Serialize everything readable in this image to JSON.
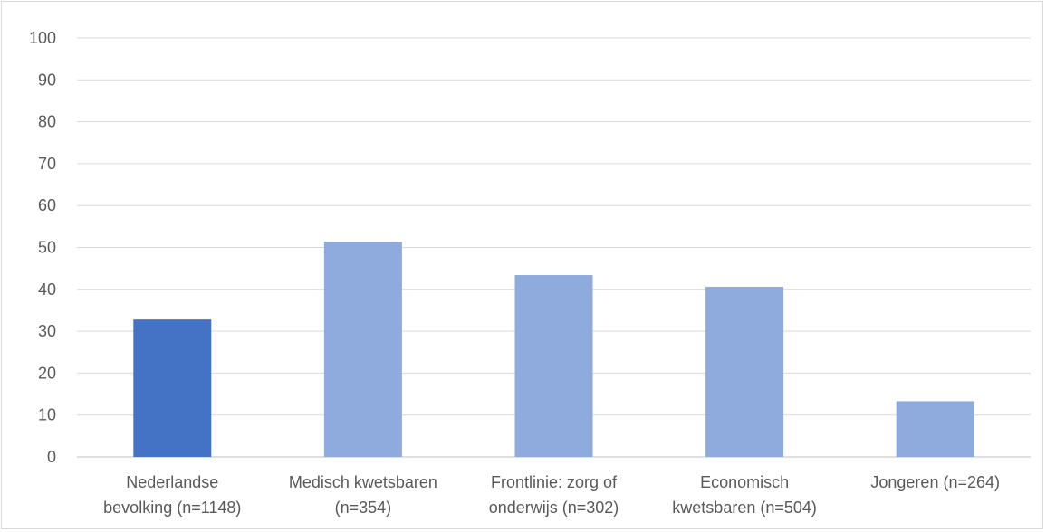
{
  "chart_data": {
    "type": "bar",
    "categories": [
      [
        "Nederlandse",
        "bevolking (n=1148)"
      ],
      [
        "Medisch kwetsbaren",
        "(n=354)"
      ],
      [
        "Frontlinie: zorg of",
        "onderwijs (n=302)"
      ],
      [
        "Economisch",
        "kwetsbaren (n=504)"
      ],
      [
        "Jongeren (n=264)"
      ]
    ],
    "values": [
      32.8,
      51.4,
      43.4,
      40.6,
      13.3
    ],
    "bar_colors": [
      "#4472c4",
      "#8faadc",
      "#8faadc",
      "#8faadc",
      "#8faadc"
    ],
    "ylim": [
      0,
      100
    ],
    "yticks": [
      0,
      10,
      20,
      30,
      40,
      50,
      60,
      70,
      80,
      90,
      100
    ],
    "grid": true,
    "title": "",
    "xlabel": "",
    "ylabel": ""
  }
}
